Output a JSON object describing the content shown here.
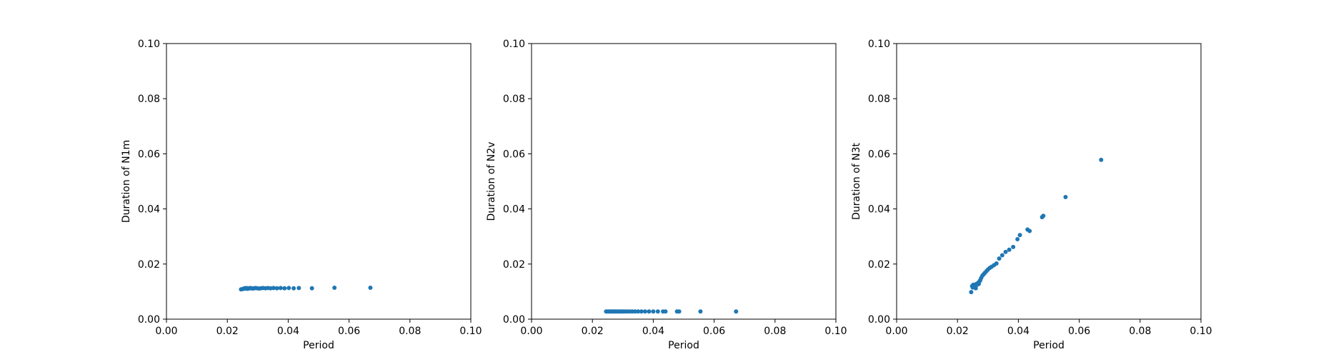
{
  "chart_data": [
    {
      "type": "scatter",
      "xlabel": "Period",
      "ylabel": "Duration of N1m",
      "xlim": [
        0,
        0.1
      ],
      "ylim": [
        0,
        0.1
      ],
      "xticks": [
        "0.00",
        "0.02",
        "0.04",
        "0.06",
        "0.08",
        "0.10"
      ],
      "yticks": [
        "0.00",
        "0.02",
        "0.04",
        "0.06",
        "0.08",
        "0.10"
      ],
      "grid": false,
      "color": "#1f77b4",
      "series": [
        {
          "x": [
            0.0245,
            0.025,
            0.0253,
            0.0256,
            0.0259,
            0.0262,
            0.0265,
            0.0268,
            0.0271,
            0.0275,
            0.0279,
            0.0283,
            0.0288,
            0.0293,
            0.0298,
            0.0304,
            0.031,
            0.0317,
            0.0325,
            0.0333,
            0.0342,
            0.0352,
            0.0363,
            0.0375,
            0.0388,
            0.0402,
            0.0418,
            0.0435,
            0.0478,
            0.0552,
            0.067
          ],
          "y": [
            0.0108,
            0.0109,
            0.011,
            0.0112,
            0.0111,
            0.0113,
            0.011,
            0.0112,
            0.0111,
            0.0113,
            0.0112,
            0.0111,
            0.0112,
            0.0113,
            0.0112,
            0.0111,
            0.0112,
            0.0113,
            0.0112,
            0.0113,
            0.0112,
            0.0113,
            0.0112,
            0.0113,
            0.0112,
            0.0113,
            0.0112,
            0.0113,
            0.0112,
            0.0114,
            0.0114
          ]
        }
      ]
    },
    {
      "type": "scatter",
      "xlabel": "Period",
      "ylabel": "Duration of N2v",
      "xlim": [
        0,
        0.1
      ],
      "ylim": [
        0,
        0.1
      ],
      "xticks": [
        "0.00",
        "0.02",
        "0.04",
        "0.06",
        "0.08",
        "0.10"
      ],
      "yticks": [
        "0.00",
        "0.02",
        "0.04",
        "0.06",
        "0.08",
        "0.10"
      ],
      "grid": false,
      "color": "#1f77b4",
      "series": [
        {
          "x": [
            0.0245,
            0.025,
            0.0254,
            0.0258,
            0.0262,
            0.0266,
            0.027,
            0.0274,
            0.0279,
            0.0284,
            0.0289,
            0.0295,
            0.0301,
            0.0308,
            0.0315,
            0.0323,
            0.0331,
            0.034,
            0.035,
            0.0361,
            0.0373,
            0.0386,
            0.04,
            0.0415,
            0.0432,
            0.044,
            0.0478,
            0.0485,
            0.0555,
            0.0672
          ],
          "y": [
            0.0028,
            0.0028,
            0.0028,
            0.0028,
            0.0028,
            0.0028,
            0.0028,
            0.0028,
            0.0028,
            0.0028,
            0.0028,
            0.0028,
            0.0028,
            0.0028,
            0.0028,
            0.0028,
            0.0028,
            0.0028,
            0.0028,
            0.0028,
            0.0028,
            0.0028,
            0.0028,
            0.0028,
            0.0028,
            0.0028,
            0.0028,
            0.0028,
            0.0028,
            0.0028
          ]
        }
      ]
    },
    {
      "type": "scatter",
      "xlabel": "Period",
      "ylabel": "Duration of N3t",
      "xlim": [
        0,
        0.1
      ],
      "ylim": [
        0,
        0.1
      ],
      "xticks": [
        "0.00",
        "0.02",
        "0.04",
        "0.06",
        "0.08",
        "0.10"
      ],
      "yticks": [
        "0.00",
        "0.02",
        "0.04",
        "0.06",
        "0.08",
        "0.10"
      ],
      "grid": false,
      "color": "#1f77b4",
      "series": [
        {
          "x": [
            0.0245,
            0.0248,
            0.025,
            0.0252,
            0.0255,
            0.0257,
            0.026,
            0.0262,
            0.0265,
            0.0268,
            0.027,
            0.0273,
            0.0275,
            0.0278,
            0.0282,
            0.0286,
            0.029,
            0.0295,
            0.03,
            0.0306,
            0.0312,
            0.032,
            0.0328,
            0.0337,
            0.0347,
            0.0358,
            0.037,
            0.0383,
            0.0397,
            0.0405,
            0.043,
            0.0437,
            0.0478,
            0.0482,
            0.0555,
            0.0672
          ],
          "y": [
            0.0098,
            0.012,
            0.0115,
            0.0125,
            0.0118,
            0.0122,
            0.0112,
            0.0128,
            0.0125,
            0.0132,
            0.0128,
            0.0138,
            0.0142,
            0.015,
            0.0158,
            0.0163,
            0.0168,
            0.0174,
            0.018,
            0.0186,
            0.019,
            0.0196,
            0.0202,
            0.022,
            0.0232,
            0.0244,
            0.0252,
            0.0262,
            0.029,
            0.0305,
            0.0325,
            0.032,
            0.037,
            0.0375,
            0.0443,
            0.0578
          ]
        }
      ]
    }
  ]
}
